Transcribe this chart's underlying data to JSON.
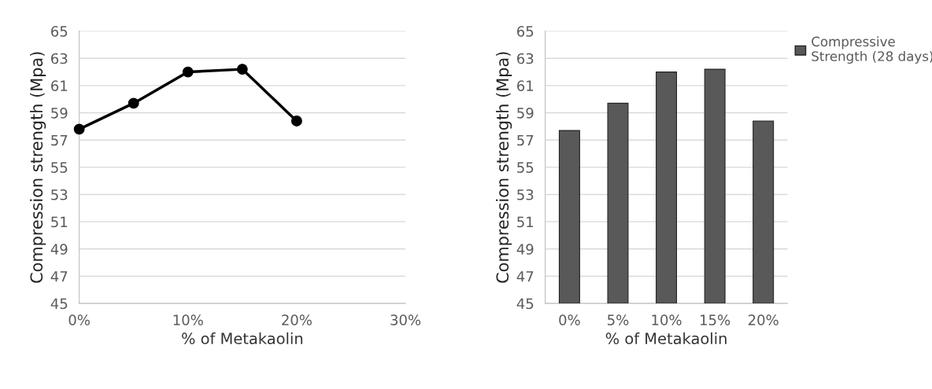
{
  "chart_data": [
    {
      "type": "line",
      "xlabel": "% of Metakaolin",
      "ylabel": "Compression strength (Mpa)",
      "x": [
        0,
        5,
        10,
        15,
        20
      ],
      "series": [
        {
          "color": "#000000",
          "values": [
            57.8,
            59.7,
            62.0,
            62.2,
            58.4
          ]
        }
      ],
      "xlim": [
        0,
        30
      ],
      "xticks": [
        {
          "value": 0,
          "label": "0%"
        },
        {
          "value": 10,
          "label": "10%"
        },
        {
          "value": 20,
          "label": "20%"
        },
        {
          "value": 30,
          "label": "30%"
        }
      ],
      "ylim": [
        45,
        65
      ],
      "yticks": [
        45,
        47,
        49,
        51,
        53,
        55,
        57,
        59,
        61,
        63,
        65
      ],
      "grid": "y",
      "marker": "circle",
      "line_style": "solid"
    },
    {
      "type": "bar",
      "xlabel": "% of Metakaolin",
      "ylabel": "Compression strength (Mpa)",
      "categories": [
        "0%",
        "5%",
        "10%",
        "15%",
        "20%"
      ],
      "series": [
        {
          "name": "Compressive Strength (28 days)",
          "color": "#595959",
          "values": [
            57.7,
            59.7,
            62.0,
            62.2,
            58.4
          ]
        }
      ],
      "ylim": [
        45,
        65
      ],
      "yticks": [
        45,
        47,
        49,
        51,
        53,
        55,
        57,
        59,
        61,
        63,
        65
      ],
      "grid": "y",
      "legend": "top right"
    }
  ]
}
